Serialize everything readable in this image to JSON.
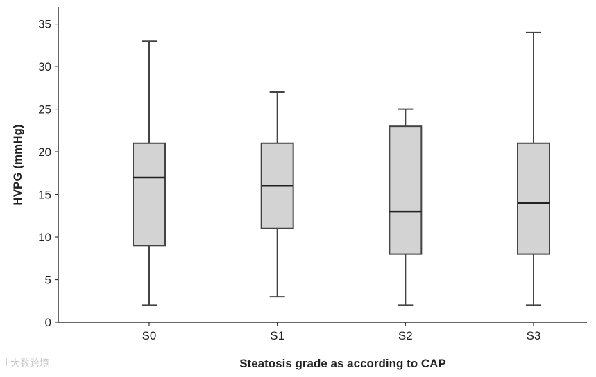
{
  "chart_data": {
    "type": "boxplot",
    "title": "",
    "xlabel": "Steatosis grade as according to CAP",
    "ylabel": "HVPG (mmHg)",
    "ylim": [
      0,
      37
    ],
    "yticks": [
      0,
      5,
      10,
      15,
      20,
      25,
      30,
      35
    ],
    "categories": [
      "S0",
      "S1",
      "S2",
      "S3"
    ],
    "boxes": [
      {
        "category": "S0",
        "min": 2,
        "q1": 9,
        "median": 17,
        "q3": 21,
        "max": 33
      },
      {
        "category": "S1",
        "min": 3,
        "q1": 11,
        "median": 16,
        "q3": 21,
        "max": 27
      },
      {
        "category": "S2",
        "min": 2,
        "q1": 8,
        "median": 13,
        "q3": 23,
        "max": 25
      },
      {
        "category": "S3",
        "min": 2,
        "q1": 8,
        "median": 14,
        "q3": 21,
        "max": 34
      }
    ],
    "colors": {
      "box_fill": "#d3d3d3",
      "line": "#444444",
      "axis": "#333333"
    }
  },
  "watermark": {
    "text": "大数跨境"
  }
}
